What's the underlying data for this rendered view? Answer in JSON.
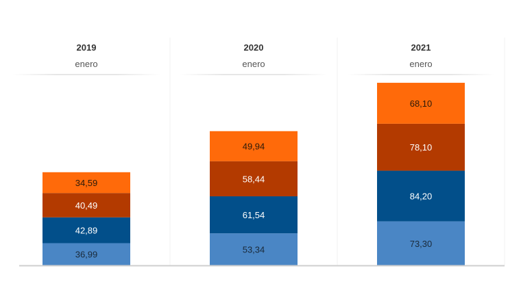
{
  "chart_data": {
    "type": "stacked-bar",
    "categories": [
      "2019",
      "2020",
      "2021"
    ],
    "subcategory_label": "enero",
    "series": [
      {
        "values": [
          36.99,
          53.34,
          73.3
        ],
        "labels": [
          "36,99",
          "53,34",
          "73,30"
        ],
        "color": "#4a86c5",
        "text_color": "#1a2a3a"
      },
      {
        "values": [
          42.89,
          61.54,
          84.2
        ],
        "labels": [
          "42,89",
          "61,54",
          "84,20"
        ],
        "color": "#024f8a",
        "text_color": "#ffffff"
      },
      {
        "values": [
          40.49,
          58.44,
          78.1
        ],
        "labels": [
          "40,49",
          "58,44",
          "78,10"
        ],
        "color": "#b33a00",
        "text_color": "#ffffff"
      },
      {
        "values": [
          34.59,
          49.94,
          68.1
        ],
        "labels": [
          "34,59",
          "49,94",
          "68,10"
        ],
        "color": "#ff6a0a",
        "text_color": "#2a1a0a"
      }
    ],
    "grid": false,
    "legend": "none"
  }
}
